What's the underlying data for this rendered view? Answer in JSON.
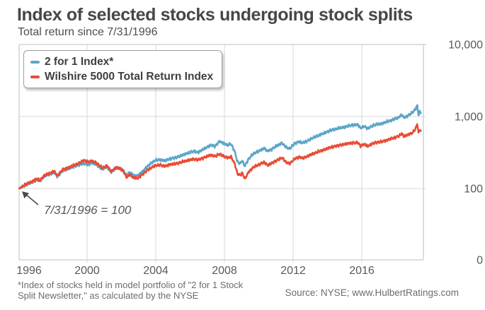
{
  "header": {
    "title": "Index of selected stocks undergoing stock splits",
    "subtitle": "Total return since 7/31/1996"
  },
  "legend": {
    "items": [
      {
        "label": "2 for 1 Index*",
        "color": "#5ca6c8"
      },
      {
        "label": "Wilshire 5000 Total Return Index",
        "color": "#e94c36"
      }
    ]
  },
  "annotation": {
    "text": "7/31/1996 = 100"
  },
  "footer": {
    "footnote_line1": "*Index of stocks held in model portfolio of \"2 for 1 Stock",
    "footnote_line2": "Split Newsletter,\" as calculated by the NYSE",
    "source": "Source: NYSE; www.HulbertRatings.com"
  },
  "chart_data": {
    "type": "line",
    "title": "Index of selected stocks undergoing stock splits",
    "subtitle": "Total return since 7/31/1996",
    "base_note": "7/31/1996 = 100",
    "x_axis": {
      "ticks": [
        1996,
        2000,
        2004,
        2008,
        2012,
        2016
      ],
      "range": [
        1996.58,
        2019.1
      ],
      "grid": true
    },
    "y_axis": {
      "scale": "log",
      "tick_labels": [
        "10,000",
        "1,000",
        "100",
        "0"
      ],
      "tick_values": [
        10000,
        1000,
        100,
        0
      ],
      "grid": true,
      "side": "right"
    },
    "legend_position": "top-left",
    "colors": {
      "grid": "#d7d7d7",
      "frame": "#c9c9c9",
      "axis_text": "#58595b",
      "series_blue": "#5ca6c8",
      "series_red": "#e94c36"
    },
    "series": [
      {
        "name": "2 for 1 Index*",
        "color": "#5ca6c8",
        "points": [
          [
            1996.58,
            100
          ],
          [
            1997.0,
            114
          ],
          [
            1997.3,
            122
          ],
          [
            1997.55,
            132
          ],
          [
            1997.75,
            128
          ],
          [
            1998.0,
            148
          ],
          [
            1998.3,
            158
          ],
          [
            1998.55,
            168
          ],
          [
            1998.72,
            146
          ],
          [
            1999.0,
            176
          ],
          [
            1999.3,
            186
          ],
          [
            1999.6,
            200
          ],
          [
            1999.9,
            212
          ],
          [
            2000.2,
            222
          ],
          [
            2000.45,
            215
          ],
          [
            2000.65,
            227
          ],
          [
            2000.9,
            215
          ],
          [
            2001.1,
            196
          ],
          [
            2001.25,
            185
          ],
          [
            2001.5,
            201
          ],
          [
            2001.73,
            168
          ],
          [
            2002.0,
            194
          ],
          [
            2002.2,
            190
          ],
          [
            2002.4,
            180
          ],
          [
            2002.6,
            153
          ],
          [
            2002.78,
            167
          ],
          [
            2003.0,
            152
          ],
          [
            2003.2,
            150
          ],
          [
            2003.45,
            168
          ],
          [
            2003.7,
            196
          ],
          [
            2004.0,
            228
          ],
          [
            2004.2,
            246
          ],
          [
            2004.5,
            252
          ],
          [
            2004.75,
            243
          ],
          [
            2005.0,
            258
          ],
          [
            2005.3,
            266
          ],
          [
            2005.6,
            282
          ],
          [
            2006.0,
            310
          ],
          [
            2006.35,
            330
          ],
          [
            2006.6,
            318
          ],
          [
            2007.0,
            362
          ],
          [
            2007.3,
            400
          ],
          [
            2007.55,
            385
          ],
          [
            2007.8,
            452
          ],
          [
            2008.0,
            430
          ],
          [
            2008.25,
            400
          ],
          [
            2008.45,
            415
          ],
          [
            2008.65,
            330
          ],
          [
            2008.8,
            235
          ],
          [
            2008.95,
            222
          ],
          [
            2009.08,
            242
          ],
          [
            2009.22,
            205
          ],
          [
            2009.45,
            262
          ],
          [
            2009.7,
            305
          ],
          [
            2010.0,
            330
          ],
          [
            2010.3,
            362
          ],
          [
            2010.5,
            330
          ],
          [
            2010.75,
            355
          ],
          [
            2011.0,
            390
          ],
          [
            2011.3,
            428
          ],
          [
            2011.55,
            370
          ],
          [
            2011.75,
            360
          ],
          [
            2012.0,
            420
          ],
          [
            2012.25,
            448
          ],
          [
            2012.45,
            430
          ],
          [
            2012.7,
            455
          ],
          [
            2013.0,
            500
          ],
          [
            2013.3,
            540
          ],
          [
            2013.6,
            580
          ],
          [
            2014.0,
            640
          ],
          [
            2014.4,
            680
          ],
          [
            2014.75,
            710
          ],
          [
            2015.0,
            740
          ],
          [
            2015.3,
            765
          ],
          [
            2015.55,
            770
          ],
          [
            2015.7,
            690
          ],
          [
            2015.9,
            730
          ],
          [
            2016.1,
            680
          ],
          [
            2016.35,
            740
          ],
          [
            2016.6,
            780
          ],
          [
            2016.9,
            800
          ],
          [
            2017.2,
            850
          ],
          [
            2017.5,
            900
          ],
          [
            2017.8,
            960
          ],
          [
            2018.02,
            1060
          ],
          [
            2018.13,
            960
          ],
          [
            2018.35,
            1030
          ],
          [
            2018.6,
            1130
          ],
          [
            2018.75,
            1250
          ],
          [
            2018.88,
            1420
          ],
          [
            2018.95,
            1030
          ],
          [
            2019.02,
            1170
          ],
          [
            2019.08,
            1120
          ]
        ]
      },
      {
        "name": "Wilshire 5000 Total Return Index",
        "color": "#e94c36",
        "points": [
          [
            1996.58,
            100
          ],
          [
            1997.0,
            116
          ],
          [
            1997.3,
            125
          ],
          [
            1997.55,
            136
          ],
          [
            1997.75,
            131
          ],
          [
            1998.0,
            152
          ],
          [
            1998.3,
            163
          ],
          [
            1998.55,
            174
          ],
          [
            1998.72,
            150
          ],
          [
            1999.0,
            182
          ],
          [
            1999.3,
            193
          ],
          [
            1999.6,
            208
          ],
          [
            1999.9,
            222
          ],
          [
            2000.2,
            246
          ],
          [
            2000.45,
            235
          ],
          [
            2000.65,
            242
          ],
          [
            2000.9,
            228
          ],
          [
            2001.1,
            206
          ],
          [
            2001.25,
            193
          ],
          [
            2001.5,
            208
          ],
          [
            2001.73,
            172
          ],
          [
            2002.0,
            196
          ],
          [
            2002.2,
            190
          ],
          [
            2002.4,
            178
          ],
          [
            2002.6,
            143
          ],
          [
            2002.78,
            156
          ],
          [
            2003.0,
            141
          ],
          [
            2003.2,
            139
          ],
          [
            2003.45,
            154
          ],
          [
            2003.7,
            175
          ],
          [
            2004.0,
            196
          ],
          [
            2004.2,
            208
          ],
          [
            2004.5,
            212
          ],
          [
            2004.75,
            204
          ],
          [
            2005.0,
            215
          ],
          [
            2005.3,
            220
          ],
          [
            2005.6,
            230
          ],
          [
            2006.0,
            245
          ],
          [
            2006.35,
            257
          ],
          [
            2006.6,
            250
          ],
          [
            2007.0,
            272
          ],
          [
            2007.3,
            290
          ],
          [
            2007.55,
            282
          ],
          [
            2007.8,
            300
          ],
          [
            2008.0,
            285
          ],
          [
            2008.25,
            268
          ],
          [
            2008.45,
            275
          ],
          [
            2008.65,
            222
          ],
          [
            2008.8,
            162
          ],
          [
            2008.95,
            152
          ],
          [
            2009.08,
            165
          ],
          [
            2009.22,
            136
          ],
          [
            2009.45,
            172
          ],
          [
            2009.7,
            198
          ],
          [
            2010.0,
            214
          ],
          [
            2010.3,
            232
          ],
          [
            2010.5,
            210
          ],
          [
            2010.75,
            226
          ],
          [
            2011.0,
            246
          ],
          [
            2011.3,
            268
          ],
          [
            2011.55,
            230
          ],
          [
            2011.75,
            222
          ],
          [
            2012.0,
            258
          ],
          [
            2012.25,
            274
          ],
          [
            2012.45,
            264
          ],
          [
            2012.7,
            278
          ],
          [
            2013.0,
            302
          ],
          [
            2013.3,
            322
          ],
          [
            2013.6,
            342
          ],
          [
            2014.0,
            372
          ],
          [
            2014.4,
            392
          ],
          [
            2014.75,
            408
          ],
          [
            2015.0,
            422
          ],
          [
            2015.3,
            432
          ],
          [
            2015.55,
            434
          ],
          [
            2015.7,
            392
          ],
          [
            2015.9,
            412
          ],
          [
            2016.1,
            386
          ],
          [
            2016.35,
            418
          ],
          [
            2016.6,
            438
          ],
          [
            2016.9,
            448
          ],
          [
            2017.2,
            472
          ],
          [
            2017.5,
            498
          ],
          [
            2017.8,
            528
          ],
          [
            2018.02,
            578
          ],
          [
            2018.13,
            528
          ],
          [
            2018.35,
            562
          ],
          [
            2018.6,
            592
          ],
          [
            2018.75,
            660
          ],
          [
            2018.82,
            715
          ],
          [
            2018.88,
            800
          ],
          [
            2018.95,
            585
          ],
          [
            2019.02,
            660
          ],
          [
            2019.08,
            635
          ]
        ]
      }
    ]
  }
}
